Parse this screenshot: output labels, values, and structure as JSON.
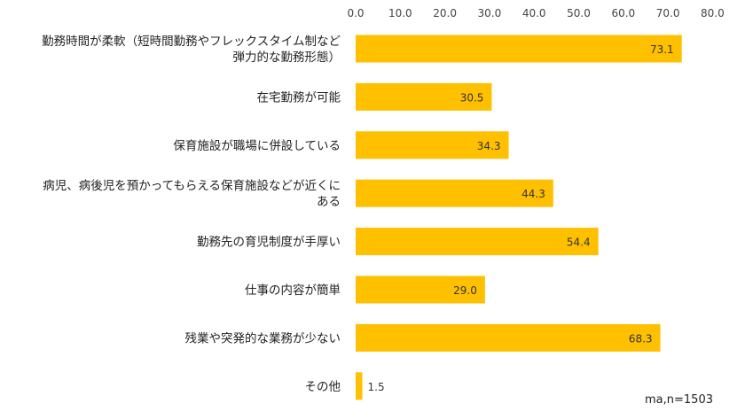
{
  "chart_data": {
    "type": "bar",
    "orientation": "horizontal",
    "categories": [
      [
        "勤務時間が柔軟（短時間勤務やフレックスタイム制など",
        "弾力的な勤務形態）"
      ],
      [
        "在宅勤務が可能"
      ],
      [
        "保育施設が職場に併設している"
      ],
      [
        "病児、病後児を預かってもらえる保育施設などが近くに",
        "ある"
      ],
      [
        "勤務先の育児制度が手厚い"
      ],
      [
        "仕事の内容が簡単"
      ],
      [
        "残業や突発的な業務が少ない"
      ],
      [
        "その他"
      ]
    ],
    "values": [
      73.1,
      30.5,
      34.3,
      44.3,
      54.4,
      29.0,
      68.3,
      1.5
    ],
    "value_labels": [
      "73.1",
      "30.5",
      "34.3",
      "44.3",
      "54.4",
      "29.0",
      "68.3",
      "1.5"
    ],
    "xlim": [
      0,
      80
    ],
    "ticks": [
      "0.0",
      "10.0",
      "20.0",
      "30.0",
      "40.0",
      "50.0",
      "60.0",
      "70.0",
      "80.0"
    ],
    "tick_values": [
      0,
      10,
      20,
      30,
      40,
      50,
      60,
      70,
      80
    ],
    "axis_position": "top",
    "grid": false,
    "bar_color": "#FFC000",
    "label_color": "#222222"
  },
  "note": "ma,n=1503"
}
